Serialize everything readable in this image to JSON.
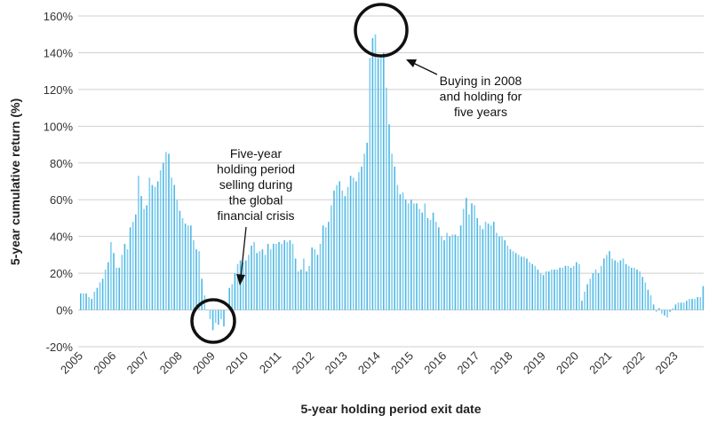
{
  "chart_data": {
    "type": "bar",
    "title": "",
    "xlabel": "5-year holding period exit date",
    "ylabel": "5-year cumulative return (%)",
    "ylim": [
      -20,
      160
    ],
    "yticks": [
      "160%",
      "140%",
      "120%",
      "100%",
      "80%",
      "60%",
      "40%",
      "20%",
      "0%",
      "-20%"
    ],
    "ytick_values": [
      160,
      140,
      120,
      100,
      80,
      60,
      40,
      20,
      0,
      -20
    ],
    "xticks": [
      "2005",
      "2006",
      "2007",
      "2008",
      "2009",
      "2010",
      "2011",
      "2012",
      "2013",
      "2014",
      "2015",
      "2016",
      "2017",
      "2018",
      "2019",
      "2020",
      "2021",
      "2022",
      "2023"
    ],
    "start": "2005-01",
    "frequency": "monthly",
    "grid": true,
    "bar_color": "#4fb8e3",
    "values": [
      9,
      9,
      9,
      7,
      6,
      10,
      12,
      15,
      17,
      22,
      26,
      37,
      31,
      23,
      23,
      30,
      36,
      33,
      45,
      48,
      52,
      73,
      62,
      55,
      57,
      72,
      68,
      67,
      70,
      76,
      80,
      86,
      85,
      72,
      68,
      60,
      54,
      50,
      47,
      46,
      46,
      38,
      33,
      32,
      17,
      8,
      0,
      -5,
      -11,
      -7,
      -8,
      -5,
      -9,
      0,
      12,
      14,
      20,
      25,
      27,
      26,
      27,
      30,
      35,
      37,
      31,
      32,
      33,
      30,
      36,
      33,
      36,
      36,
      37,
      36,
      38,
      37,
      38,
      36,
      28,
      21,
      22,
      28,
      21,
      24,
      34,
      33,
      30,
      36,
      46,
      45,
      48,
      57,
      65,
      68,
      70,
      65,
      62,
      67,
      73,
      72,
      70,
      75,
      78,
      85,
      91,
      137,
      148,
      150,
      137,
      139,
      140,
      121,
      101,
      85,
      78,
      68,
      63,
      64,
      60,
      58,
      60,
      58,
      58,
      55,
      53,
      58,
      50,
      49,
      53,
      48,
      45,
      40,
      38,
      42,
      40,
      41,
      41,
      40,
      46,
      55,
      61,
      52,
      58,
      57,
      50,
      46,
      44,
      48,
      47,
      46,
      48,
      42,
      40,
      40,
      38,
      35,
      33,
      32,
      31,
      30,
      29,
      29,
      28,
      26,
      25,
      24,
      22,
      20,
      19,
      21,
      21,
      22,
      22,
      22,
      23,
      23,
      24,
      24,
      23,
      24,
      26,
      25,
      5,
      10,
      14,
      17,
      20,
      22,
      20,
      24,
      28,
      30,
      32,
      28,
      27,
      26,
      27,
      28,
      25,
      24,
      23,
      23,
      22,
      21,
      18,
      15,
      11,
      8,
      3,
      -1,
      1,
      -2,
      -3,
      -4,
      -1,
      1,
      3,
      4,
      4,
      4,
      5,
      6,
      6,
      6,
      7,
      7,
      13
    ],
    "annotations": [
      {
        "lines": [
          "Five-year",
          "holding period",
          "selling during",
          "the global",
          "financial crisis"
        ],
        "target": "2009"
      },
      {
        "lines": [
          "Buying in 2008",
          "and holding for",
          "five years"
        ],
        "target": "2013 peak"
      }
    ]
  }
}
